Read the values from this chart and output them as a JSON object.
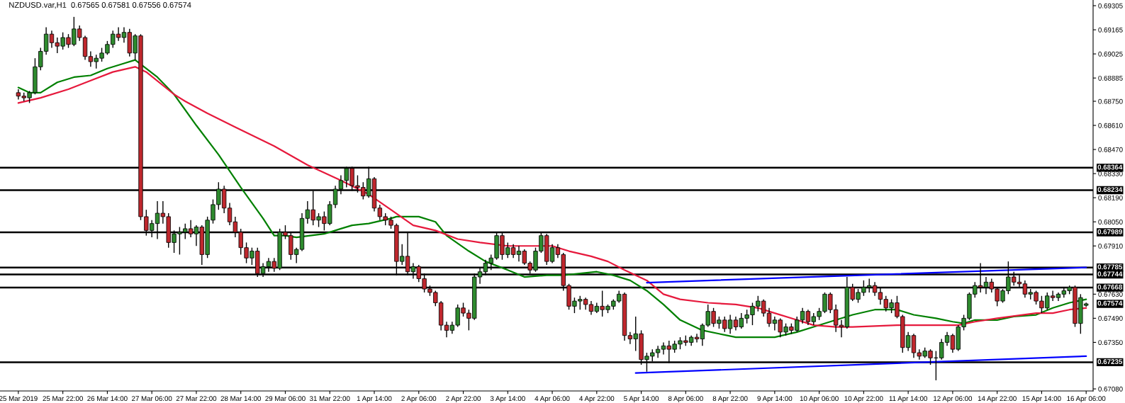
{
  "chart_data": {
    "type": "candlestick",
    "title": "NZDUSD.var,H1  0.67565 0.67581 0.67556 0.67574",
    "categories": [
      "25 Mar 2019",
      null,
      null,
      null,
      null,
      null,
      null,
      null,
      "25 Mar 22:00",
      null,
      null,
      null,
      null,
      null,
      null,
      null,
      "26 Mar 14:00",
      null,
      null,
      null,
      null,
      null,
      null,
      null,
      "27 Mar 06:00",
      null,
      null,
      null,
      null,
      null,
      null,
      null,
      "27 Mar 22:00",
      null,
      null,
      null,
      null,
      null,
      null,
      null,
      "28 Mar 14:00",
      null,
      null,
      null,
      null,
      null,
      null,
      null,
      "29 Mar 06:00",
      null,
      null,
      null,
      null,
      null,
      null,
      null,
      "31 Mar 22:00",
      null,
      null,
      null,
      null,
      null,
      null,
      null,
      "1 Apr 14:00",
      null,
      null,
      null,
      null,
      null,
      null,
      null,
      "2 Apr 06:00",
      null,
      null,
      null,
      null,
      null,
      null,
      null,
      "2 Apr 22:00",
      null,
      null,
      null,
      null,
      null,
      null,
      null,
      "3 Apr 14:00",
      null,
      null,
      null,
      null,
      null,
      null,
      null,
      "4 Apr 06:00",
      null,
      null,
      null,
      null,
      null,
      null,
      null,
      "4 Apr 22:00",
      null,
      null,
      null,
      null,
      null,
      null,
      null,
      "5 Apr 14:00",
      null,
      null,
      null,
      null,
      null,
      null,
      null,
      "8 Apr 06:00",
      null,
      null,
      null,
      null,
      null,
      null,
      null,
      "8 Apr 22:00",
      null,
      null,
      null,
      null,
      null,
      null,
      null,
      "9 Apr 14:00",
      null,
      null,
      null,
      null,
      null,
      null,
      null,
      "10 Apr 06:00",
      null,
      null,
      null,
      null,
      null,
      null,
      null,
      "10 Apr 22:00",
      null,
      null,
      null,
      null,
      null,
      null,
      null,
      "11 Apr 14:00",
      null,
      null,
      null,
      null,
      null,
      null,
      null,
      "12 Apr 06:00",
      null,
      null,
      null,
      null,
      null,
      null,
      null,
      "14 Apr 22:00",
      null,
      null,
      null,
      null,
      null,
      null,
      null,
      "15 Apr 14:00",
      null,
      null,
      null,
      null,
      null,
      null,
      null,
      "16 Apr 06:00"
    ],
    "ylim": [
      0.67068,
      0.69338
    ],
    "yticks": [
      {
        "value": 0.69305,
        "label": "0.69305"
      },
      {
        "value": 0.69165,
        "label": "0.69165"
      },
      {
        "value": 0.69025,
        "label": "0.69025"
      },
      {
        "value": 0.68885,
        "label": "0.68885"
      },
      {
        "value": 0.6875,
        "label": "0.68750"
      },
      {
        "value": 0.6861,
        "label": "0.68610"
      },
      {
        "value": 0.6847,
        "label": "0.68470"
      },
      {
        "value": 0.6833,
        "label": "0.68330"
      },
      {
        "value": 0.6819,
        "label": "0.68190"
      },
      {
        "value": 0.6805,
        "label": "0.68050"
      },
      {
        "value": 0.6791,
        "label": "0.67910"
      },
      {
        "value": 0.6763,
        "label": "0.67630"
      },
      {
        "value": 0.6749,
        "label": "0.67490"
      },
      {
        "value": 0.6735,
        "label": "0.67350"
      },
      {
        "value": 0.6708,
        "label": "0.67080"
      }
    ],
    "ohlc": [
      [
        0.688,
        0.6882,
        0.6876,
        0.6878
      ],
      [
        0.6878,
        0.688,
        0.6875,
        0.6877
      ],
      [
        0.6877,
        0.6881,
        0.6874,
        0.688
      ],
      [
        0.688,
        0.69,
        0.6879,
        0.6895
      ],
      [
        0.6895,
        0.6906,
        0.6893,
        0.6904
      ],
      [
        0.6904,
        0.6918,
        0.6902,
        0.6914
      ],
      [
        0.6914,
        0.6916,
        0.6906,
        0.6909
      ],
      [
        0.6909,
        0.6912,
        0.6903,
        0.6907
      ],
      [
        0.6907,
        0.6915,
        0.6905,
        0.6912
      ],
      [
        0.6912,
        0.6914,
        0.6906,
        0.6908
      ],
      [
        0.6908,
        0.6924,
        0.6907,
        0.6917
      ],
      [
        0.6917,
        0.6919,
        0.691,
        0.6912
      ],
      [
        0.6912,
        0.6913,
        0.6899,
        0.6901
      ],
      [
        0.6901,
        0.6904,
        0.6895,
        0.6898
      ],
      [
        0.6898,
        0.6902,
        0.6894,
        0.69
      ],
      [
        0.69,
        0.6906,
        0.6898,
        0.6903
      ],
      [
        0.6903,
        0.691,
        0.6902,
        0.6908
      ],
      [
        0.6908,
        0.6916,
        0.6906,
        0.6914
      ],
      [
        0.6914,
        0.6918,
        0.691,
        0.6912
      ],
      [
        0.6912,
        0.6918,
        0.6909,
        0.6915
      ],
      [
        0.6915,
        0.6917,
        0.6901,
        0.6903
      ],
      [
        0.6903,
        0.6914,
        0.6899,
        0.6913
      ],
      [
        0.6913,
        0.6914,
        0.6806,
        0.6808
      ],
      [
        0.6808,
        0.6812,
        0.6797,
        0.68
      ],
      [
        0.68,
        0.6806,
        0.6796,
        0.6804
      ],
      [
        0.6804,
        0.6817,
        0.6795,
        0.681
      ],
      [
        0.681,
        0.6817,
        0.6804,
        0.6808
      ],
      [
        0.6808,
        0.681,
        0.679,
        0.6793
      ],
      [
        0.6793,
        0.68,
        0.6787,
        0.6798
      ],
      [
        0.6798,
        0.6802,
        0.6786,
        0.6799
      ],
      [
        0.6799,
        0.6804,
        0.6795,
        0.6801
      ],
      [
        0.6801,
        0.6806,
        0.6796,
        0.6798
      ],
      [
        0.6798,
        0.6803,
        0.6791,
        0.6802
      ],
      [
        0.6802,
        0.6803,
        0.678,
        0.6786
      ],
      [
        0.6786,
        0.6808,
        0.6784,
        0.6806
      ],
      [
        0.6806,
        0.6818,
        0.6804,
        0.6815
      ],
      [
        0.6815,
        0.6828,
        0.6812,
        0.6824
      ],
      [
        0.6824,
        0.6826,
        0.681,
        0.6813
      ],
      [
        0.6813,
        0.6816,
        0.6803,
        0.6805
      ],
      [
        0.6805,
        0.6808,
        0.6796,
        0.6799
      ],
      [
        0.6799,
        0.6801,
        0.6786,
        0.679
      ],
      [
        0.679,
        0.6793,
        0.6781,
        0.6784
      ],
      [
        0.6784,
        0.679,
        0.678,
        0.6788
      ],
      [
        0.6788,
        0.679,
        0.6773,
        0.6775
      ],
      [
        0.6775,
        0.6781,
        0.6773,
        0.6779
      ],
      [
        0.6779,
        0.6784,
        0.6776,
        0.6782
      ],
      [
        0.6782,
        0.6784,
        0.6776,
        0.6778
      ],
      [
        0.6778,
        0.6801,
        0.6777,
        0.6799
      ],
      [
        0.6799,
        0.6803,
        0.6795,
        0.6797
      ],
      [
        0.6797,
        0.6799,
        0.6783,
        0.6786
      ],
      [
        0.6786,
        0.679,
        0.6781,
        0.6789
      ],
      [
        0.6789,
        0.681,
        0.6788,
        0.6807
      ],
      [
        0.6807,
        0.6817,
        0.6804,
        0.6812
      ],
      [
        0.6812,
        0.6823,
        0.6803,
        0.6806
      ],
      [
        0.6806,
        0.681,
        0.6802,
        0.6808
      ],
      [
        0.6808,
        0.6811,
        0.68,
        0.6804
      ],
      [
        0.6804,
        0.6817,
        0.6803,
        0.6815
      ],
      [
        0.6815,
        0.6826,
        0.6813,
        0.6824
      ],
      [
        0.6824,
        0.6832,
        0.6821,
        0.6829
      ],
      [
        0.6829,
        0.6837,
        0.6825,
        0.6836
      ],
      [
        0.6836,
        0.6837,
        0.6823,
        0.6826
      ],
      [
        0.6826,
        0.6832,
        0.6822,
        0.6825
      ],
      [
        0.6825,
        0.6828,
        0.6818,
        0.682
      ],
      [
        0.682,
        0.6837,
        0.6819,
        0.683
      ],
      [
        0.683,
        0.6831,
        0.6811,
        0.6813
      ],
      [
        0.6813,
        0.6815,
        0.6806,
        0.6808
      ],
      [
        0.6808,
        0.681,
        0.6803,
        0.6806
      ],
      [
        0.6806,
        0.6808,
        0.6801,
        0.6803
      ],
      [
        0.6803,
        0.6804,
        0.6774,
        0.6782
      ],
      [
        0.6782,
        0.6792,
        0.678,
        0.6785
      ],
      [
        0.6785,
        0.6799,
        0.6774,
        0.6776
      ],
      [
        0.6776,
        0.6781,
        0.6772,
        0.6779
      ],
      [
        0.6779,
        0.678,
        0.677,
        0.6772
      ],
      [
        0.6772,
        0.6775,
        0.6764,
        0.6766
      ],
      [
        0.6766,
        0.6768,
        0.6762,
        0.6764
      ],
      [
        0.6764,
        0.6765,
        0.6756,
        0.6758
      ],
      [
        0.6758,
        0.6759,
        0.6742,
        0.6745
      ],
      [
        0.6745,
        0.6747,
        0.6738,
        0.6742
      ],
      [
        0.6742,
        0.6747,
        0.674,
        0.6745
      ],
      [
        0.6745,
        0.6757,
        0.6744,
        0.6755
      ],
      [
        0.6755,
        0.6758,
        0.675,
        0.6752
      ],
      [
        0.6752,
        0.6754,
        0.6742,
        0.6749
      ],
      [
        0.6749,
        0.6775,
        0.6748,
        0.6773
      ],
      [
        0.6773,
        0.6778,
        0.6769,
        0.6776
      ],
      [
        0.6776,
        0.6783,
        0.6774,
        0.6781
      ],
      [
        0.6781,
        0.6786,
        0.6777,
        0.6784
      ],
      [
        0.6784,
        0.6799,
        0.6783,
        0.6797
      ],
      [
        0.6797,
        0.6799,
        0.6783,
        0.6786
      ],
      [
        0.6786,
        0.6793,
        0.6784,
        0.679
      ],
      [
        0.679,
        0.6792,
        0.6784,
        0.6786
      ],
      [
        0.6786,
        0.6791,
        0.6782,
        0.6788
      ],
      [
        0.6788,
        0.6789,
        0.678,
        0.6781
      ],
      [
        0.6781,
        0.6782,
        0.6775,
        0.6777
      ],
      [
        0.6777,
        0.679,
        0.6776,
        0.6788
      ],
      [
        0.6788,
        0.6799,
        0.6787,
        0.6797
      ],
      [
        0.6797,
        0.6798,
        0.678,
        0.6782
      ],
      [
        0.6782,
        0.6792,
        0.6781,
        0.679
      ],
      [
        0.679,
        0.6792,
        0.6784,
        0.6786
      ],
      [
        0.6786,
        0.6787,
        0.6765,
        0.6768
      ],
      [
        0.6768,
        0.6769,
        0.6754,
        0.6756
      ],
      [
        0.6756,
        0.6761,
        0.6752,
        0.6759
      ],
      [
        0.6759,
        0.6762,
        0.6754,
        0.676
      ],
      [
        0.676,
        0.6761,
        0.6754,
        0.6757
      ],
      [
        0.6757,
        0.6759,
        0.6751,
        0.6753
      ],
      [
        0.6753,
        0.6758,
        0.6752,
        0.6756
      ],
      [
        0.6756,
        0.6765,
        0.675,
        0.6754
      ],
      [
        0.6754,
        0.6757,
        0.6752,
        0.6756
      ],
      [
        0.6756,
        0.676,
        0.6754,
        0.6759
      ],
      [
        0.6759,
        0.6765,
        0.6758,
        0.6763
      ],
      [
        0.6763,
        0.6764,
        0.6736,
        0.6739
      ],
      [
        0.6739,
        0.6741,
        0.6734,
        0.6737
      ],
      [
        0.6737,
        0.675,
        0.673,
        0.674
      ],
      [
        0.674,
        0.6742,
        0.6722,
        0.6725
      ],
      [
        0.6725,
        0.6729,
        0.6718,
        0.6727
      ],
      [
        0.6727,
        0.6731,
        0.6724,
        0.6729
      ],
      [
        0.6729,
        0.6733,
        0.6726,
        0.6731
      ],
      [
        0.6731,
        0.6735,
        0.6728,
        0.6733
      ],
      [
        0.6733,
        0.6736,
        0.6723,
        0.6731
      ],
      [
        0.6731,
        0.6736,
        0.6729,
        0.6734
      ],
      [
        0.6734,
        0.6738,
        0.6731,
        0.6736
      ],
      [
        0.6736,
        0.6739,
        0.6733,
        0.6735
      ],
      [
        0.6735,
        0.6739,
        0.6733,
        0.6738
      ],
      [
        0.6738,
        0.674,
        0.6735,
        0.6737
      ],
      [
        0.6737,
        0.6746,
        0.6733,
        0.6745
      ],
      [
        0.6745,
        0.6757,
        0.6744,
        0.6753
      ],
      [
        0.6753,
        0.6755,
        0.6744,
        0.6746
      ],
      [
        0.6746,
        0.675,
        0.6743,
        0.6748
      ],
      [
        0.6748,
        0.675,
        0.6741,
        0.6743
      ],
      [
        0.6743,
        0.6751,
        0.674,
        0.6748
      ],
      [
        0.6748,
        0.675,
        0.6742,
        0.6744
      ],
      [
        0.6744,
        0.6752,
        0.6743,
        0.6749
      ],
      [
        0.6749,
        0.6754,
        0.6746,
        0.6751
      ],
      [
        0.6751,
        0.6758,
        0.6745,
        0.6756
      ],
      [
        0.6756,
        0.6762,
        0.6753,
        0.6759
      ],
      [
        0.6759,
        0.676,
        0.675,
        0.6752
      ],
      [
        0.6752,
        0.6755,
        0.6744,
        0.6746
      ],
      [
        0.6746,
        0.675,
        0.6742,
        0.6748
      ],
      [
        0.6748,
        0.6749,
        0.6738,
        0.6741
      ],
      [
        0.6741,
        0.6746,
        0.6739,
        0.6744
      ],
      [
        0.6744,
        0.6746,
        0.674,
        0.6742
      ],
      [
        0.6742,
        0.675,
        0.6741,
        0.6748
      ],
      [
        0.6748,
        0.6755,
        0.6746,
        0.6753
      ],
      [
        0.6753,
        0.6754,
        0.6745,
        0.6747
      ],
      [
        0.6747,
        0.6752,
        0.6745,
        0.675
      ],
      [
        0.675,
        0.6755,
        0.6748,
        0.6753
      ],
      [
        0.6753,
        0.6764,
        0.6752,
        0.6763
      ],
      [
        0.6763,
        0.6764,
        0.6752,
        0.6754
      ],
      [
        0.6754,
        0.6757,
        0.6741,
        0.6745
      ],
      [
        0.6745,
        0.6748,
        0.6738,
        0.6744
      ],
      [
        0.6744,
        0.6773,
        0.6743,
        0.6767
      ],
      [
        0.6767,
        0.6769,
        0.6759,
        0.676
      ],
      [
        0.676,
        0.6766,
        0.6758,
        0.6764
      ],
      [
        0.6764,
        0.6771,
        0.6762,
        0.6767
      ],
      [
        0.6767,
        0.6772,
        0.6764,
        0.6768
      ],
      [
        0.6768,
        0.677,
        0.6762,
        0.6764
      ],
      [
        0.6764,
        0.6767,
        0.6757,
        0.676
      ],
      [
        0.676,
        0.6762,
        0.6753,
        0.6755
      ],
      [
        0.6755,
        0.676,
        0.6752,
        0.6758
      ],
      [
        0.6758,
        0.6762,
        0.6749,
        0.675
      ],
      [
        0.675,
        0.6751,
        0.6729,
        0.6732
      ],
      [
        0.6732,
        0.6741,
        0.673,
        0.6739
      ],
      [
        0.6739,
        0.674,
        0.6726,
        0.6729
      ],
      [
        0.6729,
        0.6731,
        0.6725,
        0.6727
      ],
      [
        0.6727,
        0.6732,
        0.6726,
        0.673
      ],
      [
        0.673,
        0.6731,
        0.6722,
        0.6726
      ],
      [
        0.6726,
        0.673,
        0.6713,
        0.6726
      ],
      [
        0.6726,
        0.6737,
        0.6725,
        0.6735
      ],
      [
        0.6735,
        0.6741,
        0.6733,
        0.6739
      ],
      [
        0.6739,
        0.674,
        0.6729,
        0.6731
      ],
      [
        0.6731,
        0.6745,
        0.673,
        0.6744
      ],
      [
        0.6744,
        0.6751,
        0.6742,
        0.6749
      ],
      [
        0.6749,
        0.6764,
        0.6748,
        0.6763
      ],
      [
        0.6763,
        0.677,
        0.6761,
        0.6768
      ],
      [
        0.6768,
        0.6781,
        0.6764,
        0.6767
      ],
      [
        0.6767,
        0.6773,
        0.6763,
        0.677
      ],
      [
        0.677,
        0.6772,
        0.6764,
        0.6766
      ],
      [
        0.6766,
        0.6767,
        0.6756,
        0.6759
      ],
      [
        0.6759,
        0.6766,
        0.6758,
        0.6765
      ],
      [
        0.6765,
        0.6782,
        0.6763,
        0.6773
      ],
      [
        0.6773,
        0.6776,
        0.6768,
        0.677
      ],
      [
        0.677,
        0.6774,
        0.6767,
        0.6769
      ],
      [
        0.6769,
        0.6771,
        0.6761,
        0.6763
      ],
      [
        0.6763,
        0.6766,
        0.676,
        0.6764
      ],
      [
        0.6764,
        0.6765,
        0.6757,
        0.6759
      ],
      [
        0.6759,
        0.6762,
        0.6752,
        0.6755
      ],
      [
        0.6755,
        0.6764,
        0.6754,
        0.6762
      ],
      [
        0.6762,
        0.6765,
        0.6759,
        0.6761
      ],
      [
        0.6761,
        0.6764,
        0.6759,
        0.6763
      ],
      [
        0.6763,
        0.6767,
        0.6761,
        0.6765
      ],
      [
        0.6765,
        0.6768,
        0.6763,
        0.6767
      ],
      [
        0.6767,
        0.6768,
        0.6744,
        0.6746
      ],
      [
        0.6746,
        0.6763,
        0.674,
        0.6761
      ],
      [
        0.67565,
        0.67581,
        0.67556,
        0.67574
      ]
    ],
    "series": [
      {
        "type": "line",
        "color": "#008000",
        "values": [
          0.6883,
          null,
          0.688,
          null,
          0.688,
          null,
          null,
          0.6886,
          null,
          null,
          0.6889,
          null,
          null,
          0.689,
          null,
          null,
          0.6894,
          null,
          null,
          0.6897,
          null,
          0.6899,
          null,
          null,
          null,
          0.6889,
          null,
          null,
          0.6879,
          null,
          null,
          null,
          0.6861,
          null,
          null,
          null,
          0.6844,
          null,
          null,
          null,
          0.6825,
          null,
          null,
          null,
          0.6807,
          null,
          0.6797,
          null,
          0.6797,
          null,
          0.6796,
          null,
          null,
          null,
          null,
          0.6798,
          null,
          null,
          0.6801,
          null,
          0.6803,
          null,
          null,
          0.6804,
          null,
          null,
          null,
          0.6807,
          0.6808,
          null,
          null,
          null,
          0.6808,
          null,
          null,
          0.6805,
          null,
          0.6797,
          null,
          null,
          null,
          0.6788,
          null,
          null,
          0.6782,
          null,
          null,
          null,
          0.6777,
          null,
          null,
          0.6773,
          null,
          null,
          null,
          0.6774,
          null,
          null,
          0.6774,
          null,
          null,
          0.6775,
          null,
          null,
          0.6776,
          null,
          null,
          0.6774,
          null,
          null,
          0.6771,
          null,
          null,
          0.6765,
          null,
          null,
          0.6757,
          null,
          null,
          0.6748,
          null,
          null,
          null,
          0.6742,
          null,
          null,
          0.674,
          null,
          null,
          0.6738,
          null,
          null,
          null,
          0.6738,
          null,
          null,
          0.6738,
          null,
          null,
          null,
          0.6741,
          null,
          null,
          0.6744,
          null,
          null,
          null,
          0.6748,
          null,
          null,
          0.6751,
          null,
          null,
          null,
          0.6754,
          null,
          null,
          null,
          0.6754,
          null,
          null,
          0.6751,
          null,
          null,
          null,
          0.6749,
          null,
          null,
          0.6747,
          null,
          0.6746,
          null,
          0.6748,
          null,
          null,
          null,
          0.6748,
          null,
          null,
          0.675,
          null,
          null,
          null,
          0.6751,
          null,
          null,
          0.6755,
          null,
          null,
          0.6758,
          null,
          null,
          0.676
        ]
      },
      {
        "type": "line",
        "color": "#e6193c",
        "values": [
          0.6874,
          null,
          null,
          null,
          0.6877,
          null,
          null,
          null,
          null,
          0.6882,
          null,
          null,
          null,
          0.6887,
          null,
          null,
          null,
          0.6892,
          null,
          null,
          null,
          0.6895,
          null,
          0.6892,
          null,
          null,
          null,
          null,
          0.6879,
          null,
          0.6875,
          null,
          null,
          null,
          0.6868,
          null,
          null,
          null,
          null,
          0.686,
          null,
          null,
          null,
          null,
          null,
          null,
          0.6849,
          null,
          null,
          null,
          null,
          null,
          0.6838,
          null,
          null,
          null,
          null,
          null,
          0.6829,
          null,
          null,
          null,
          null,
          0.6821,
          null,
          null,
          null,
          0.6812,
          null,
          null,
          null,
          0.6803,
          null,
          null,
          null,
          0.68,
          null,
          null,
          null,
          0.6795,
          null,
          null,
          null,
          0.6793,
          null,
          null,
          null,
          null,
          0.6791,
          null,
          null,
          null,
          0.6791,
          null,
          null,
          null,
          0.6791,
          null,
          null,
          0.6788,
          null,
          null,
          null,
          0.6785,
          null,
          null,
          0.6782,
          null,
          null,
          0.6777,
          null,
          null,
          null,
          0.6771,
          null,
          null,
          0.6763,
          null,
          null,
          0.676,
          null,
          null,
          null,
          null,
          0.6758,
          null,
          null,
          null,
          null,
          0.6757,
          null,
          null,
          null,
          0.6755,
          null,
          null,
          0.6752,
          null,
          null,
          null,
          0.6748,
          null,
          null,
          0.6745,
          null,
          null,
          null,
          0.6744,
          null,
          null,
          0.6744,
          null,
          null,
          null,
          null,
          null,
          null,
          null,
          0.6745,
          null,
          null,
          null,
          null,
          null,
          null,
          0.6745,
          null,
          null,
          null,
          0.6745,
          null,
          null,
          0.6747,
          null,
          null,
          null,
          0.6749,
          null,
          null,
          null,
          null,
          null,
          null,
          0.6752,
          null,
          null,
          0.6752,
          null,
          null,
          0.6754,
          null,
          null,
          0.6755
        ]
      },
      {
        "type": "line",
        "color": "#0000ff",
        "values": [
          null,
          null,
          null,
          null,
          null,
          null,
          null,
          null,
          null,
          null,
          null,
          null,
          null,
          null,
          null,
          null,
          null,
          null,
          null,
          null,
          null,
          null,
          null,
          null,
          null,
          null,
          null,
          null,
          null,
          null,
          null,
          null,
          null,
          null,
          null,
          null,
          null,
          null,
          null,
          null,
          null,
          null,
          null,
          null,
          null,
          null,
          null,
          null,
          null,
          null,
          null,
          null,
          null,
          null,
          null,
          null,
          null,
          null,
          null,
          null,
          null,
          null,
          null,
          null,
          null,
          null,
          null,
          null,
          null,
          null,
          null,
          null,
          null,
          null,
          null,
          null,
          null,
          null,
          null,
          null,
          null,
          null,
          null,
          null,
          null,
          null,
          null,
          null,
          null,
          null,
          null,
          null,
          null,
          null,
          null,
          null,
          null,
          null,
          null,
          null,
          null,
          null,
          null,
          null,
          null,
          null,
          null,
          null,
          null,
          null,
          null,
          null,
          null,
          0.67697,
          null,
          null,
          null,
          null,
          null,
          null,
          null,
          null,
          null,
          null,
          null,
          null,
          null,
          null,
          null,
          null,
          null,
          null,
          null,
          null,
          null,
          null,
          null,
          null,
          null,
          null,
          null,
          null,
          null,
          null,
          null,
          null,
          null,
          null,
          null,
          null,
          null,
          null,
          null,
          null,
          null,
          null,
          null,
          null,
          null,
          null,
          null,
          null,
          null,
          null,
          null,
          null,
          null,
          null,
          null,
          null,
          null,
          null,
          null,
          null,
          null,
          null,
          null,
          null,
          null,
          null,
          null,
          null,
          null,
          null,
          null,
          null,
          null,
          null,
          null,
          null,
          null,
          null,
          0.67785
        ]
      },
      {
        "type": "line",
        "color": "#0000ff",
        "values": [
          null,
          null,
          null,
          null,
          null,
          null,
          null,
          null,
          null,
          null,
          null,
          null,
          null,
          null,
          null,
          null,
          null,
          null,
          null,
          null,
          null,
          null,
          null,
          null,
          null,
          null,
          null,
          null,
          null,
          null,
          null,
          null,
          null,
          null,
          null,
          null,
          null,
          null,
          null,
          null,
          null,
          null,
          null,
          null,
          null,
          null,
          null,
          null,
          null,
          null,
          null,
          null,
          null,
          null,
          null,
          null,
          null,
          null,
          null,
          null,
          null,
          null,
          null,
          null,
          null,
          null,
          null,
          null,
          null,
          null,
          null,
          null,
          null,
          null,
          null,
          null,
          null,
          null,
          null,
          null,
          null,
          null,
          null,
          null,
          null,
          null,
          null,
          null,
          null,
          null,
          null,
          null,
          null,
          null,
          null,
          null,
          null,
          null,
          null,
          null,
          null,
          null,
          null,
          null,
          null,
          null,
          null,
          null,
          null,
          null,
          null,
          0.67172,
          null,
          null,
          null,
          null,
          null,
          null,
          null,
          null,
          null,
          null,
          null,
          null,
          null,
          null,
          null,
          null,
          null,
          null,
          null,
          null,
          null,
          null,
          null,
          null,
          null,
          null,
          null,
          null,
          null,
          null,
          null,
          null,
          null,
          null,
          null,
          null,
          null,
          null,
          null,
          null,
          null,
          null,
          null,
          null,
          null,
          null,
          null,
          null,
          null,
          null,
          null,
          null,
          null,
          null,
          null,
          null,
          null,
          null,
          null,
          null,
          null,
          null,
          null,
          null,
          null,
          null,
          null,
          null,
          null,
          null,
          null,
          null,
          null,
          null,
          null,
          null,
          null,
          null,
          null,
          null,
          0.6727
        ]
      }
    ],
    "ref_lines": [
      {
        "axis": "y",
        "value": 0.68364,
        "label": "0.68364",
        "color": "#000000"
      },
      {
        "axis": "y",
        "value": 0.68234,
        "label": "0.68234",
        "color": "#000000"
      },
      {
        "axis": "y",
        "value": 0.67989,
        "label": "0.67989",
        "color": "#000000"
      },
      {
        "axis": "y",
        "value": 0.67785,
        "label": "0.67785",
        "color": "#000000"
      },
      {
        "axis": "y",
        "value": 0.67744,
        "label": "0.67744",
        "color": "#000000"
      },
      {
        "axis": "y",
        "value": 0.67668,
        "label": "0.67668",
        "color": "#000000"
      },
      {
        "axis": "y",
        "value": 0.67235,
        "label": "0.67235",
        "color": "#000000"
      }
    ],
    "annotations": [
      "0.67574"
    ]
  }
}
